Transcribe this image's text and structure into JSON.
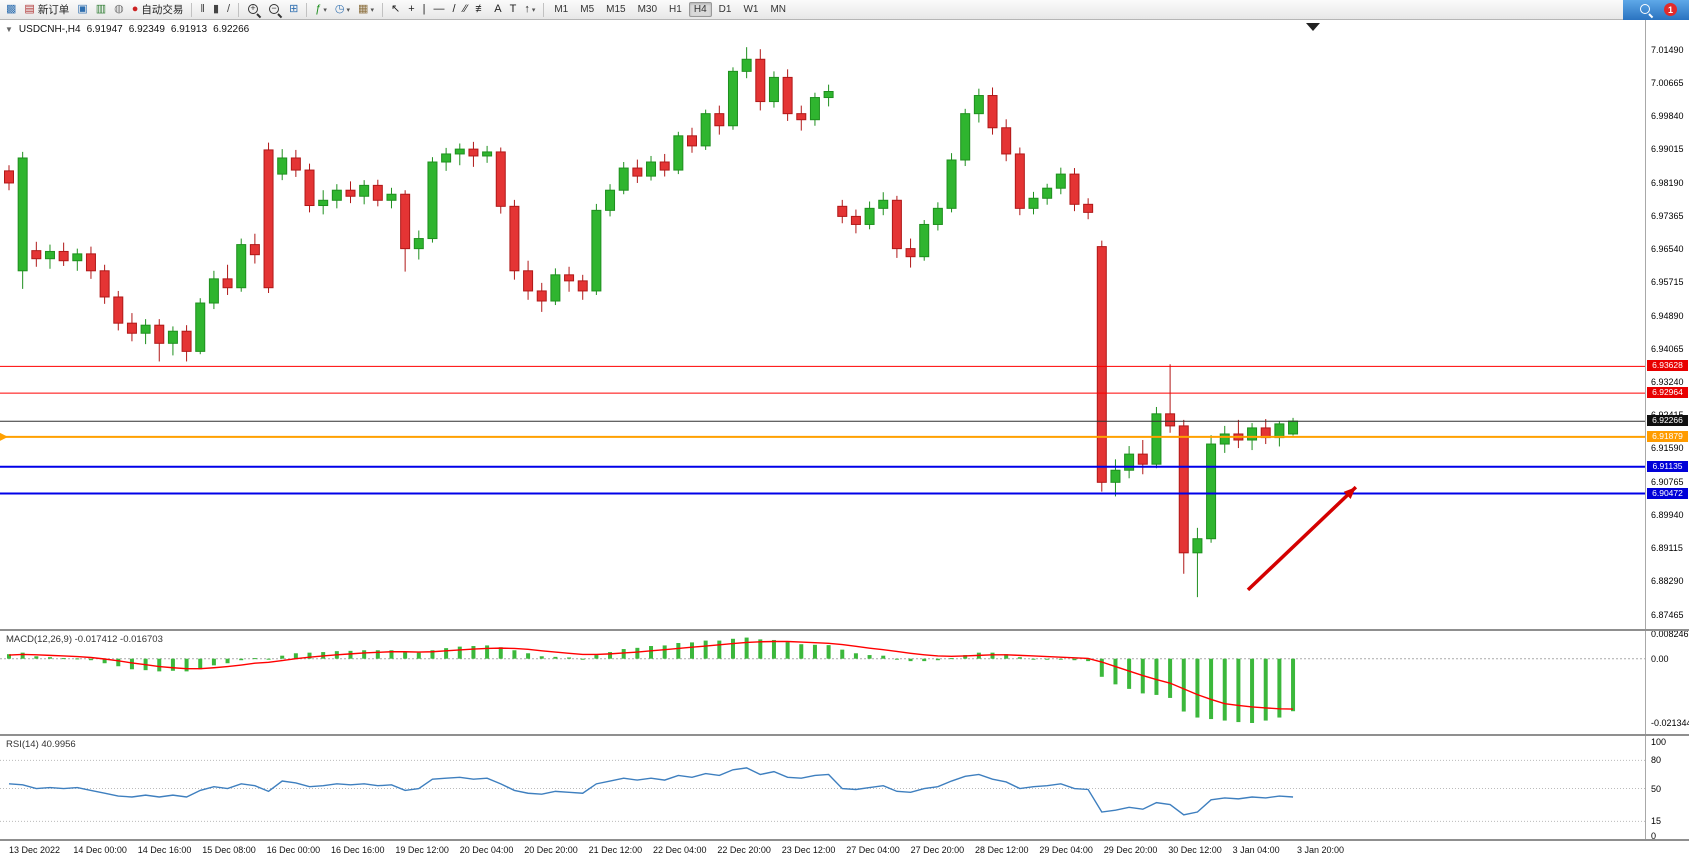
{
  "toolbar": {
    "buttons": [
      {
        "name": "new-chart",
        "glyph": "▩",
        "tint": "#2F6FB0"
      },
      {
        "name": "new-order",
        "label": "新订单",
        "glyph": "▤",
        "tint": "#B03030"
      },
      {
        "name": "profiles",
        "glyph": "▣",
        "tint": "#2F6FB0"
      },
      {
        "name": "market-watch",
        "glyph": "▥",
        "tint": "#2E7D32"
      },
      {
        "name": "navigator",
        "glyph": "◍",
        "tint": "#777777"
      },
      {
        "name": "autotrading",
        "label": "自动交易",
        "glyph": "●",
        "tint": "#CC2222"
      },
      {
        "sep": true
      },
      {
        "name": "bar-chart",
        "glyph": "‖",
        "tint": "#444444"
      },
      {
        "name": "candlestick-chart",
        "glyph": "▮",
        "tint": "#444444"
      },
      {
        "name": "line-chart",
        "glyph": "/",
        "tint": "#444444"
      },
      {
        "sep": true
      },
      {
        "name": "zoom-in",
        "css": "mag",
        "glyph": "+",
        "tint": "#333333"
      },
      {
        "name": "zoom-out",
        "css": "mag",
        "glyph": "−",
        "tint": "#333333"
      },
      {
        "name": "tile-windows",
        "glyph": "⊞",
        "tint": "#2F6FB0"
      },
      {
        "sep": true
      },
      {
        "name": "indicators",
        "glyph": "ƒ",
        "tint": "#1E8F1E",
        "dropdown": true
      },
      {
        "name": "periods",
        "glyph": "◷",
        "tint": "#2F6FB0",
        "dropdown": true
      },
      {
        "name": "templates",
        "glyph": "▦",
        "tint": "#8A6D3B",
        "dropdown": true
      },
      {
        "sep": true
      },
      {
        "name": "cursor",
        "glyph": "↖",
        "tint": "#222222"
      },
      {
        "name": "crosshair",
        "glyph": "+",
        "tint": "#222222"
      },
      {
        "name": "vertical-line",
        "glyph": "|",
        "tint": "#222222"
      },
      {
        "name": "horizontal-line",
        "glyph": "—",
        "tint": "#222222"
      },
      {
        "name": "trendline",
        "glyph": "/",
        "tint": "#222222"
      },
      {
        "name": "equidistant-channel",
        "glyph": "⁄⁄",
        "tint": "#222222"
      },
      {
        "name": "fibonacci",
        "glyph": "≢",
        "tint": "#222222"
      },
      {
        "name": "text",
        "glyph": "A",
        "tint": "#222222"
      },
      {
        "name": "text-label",
        "glyph": "T",
        "tint": "#222222"
      },
      {
        "name": "arrows",
        "glyph": "↑",
        "tint": "#222222",
        "dropdown": true
      },
      {
        "sep": true
      }
    ],
    "timeframes": [
      "M1",
      "M5",
      "M15",
      "M30",
      "H1",
      "H4",
      "D1",
      "W1",
      "MN"
    ],
    "active_timeframe": "H4",
    "notification_count": "1"
  },
  "chart": {
    "symbol_period": "USDCNH-,H4",
    "open": "6.91947",
    "high": "6.92349",
    "low": "6.91913",
    "close": "6.92266"
  },
  "colors": {
    "candle_up_fill": "#2FB52F",
    "candle_up_stroke": "#1E8F1E",
    "candle_down_fill": "#E43434",
    "candle_down_stroke": "#B01818",
    "macd_histogram": "#3CB83C",
    "macd_signal": "#FF0000",
    "rsi_line": "#3E7FBF"
  },
  "chart_data": {
    "type": "candlestick",
    "symbol": "USDCNH-",
    "timeframe": "H4",
    "price_axis": [
      "7.01490",
      "7.00665",
      "6.99840",
      "6.99015",
      "6.98190",
      "6.97365",
      "6.96540",
      "6.95715",
      "6.94890",
      "6.94065",
      "6.93240",
      "6.92415",
      "6.91590",
      "6.90765",
      "6.89940",
      "6.89115",
      "6.88290",
      "6.87465"
    ],
    "candles": [
      [
        6.9848,
        6.9862,
        6.98,
        6.9818
      ],
      [
        6.96,
        6.9895,
        6.9555,
        6.988
      ],
      [
        6.965,
        6.9672,
        6.961,
        6.963
      ],
      [
        6.963,
        6.9665,
        6.9605,
        6.9648
      ],
      [
        6.9648,
        6.967,
        6.9612,
        6.9625
      ],
      [
        6.9625,
        6.9655,
        6.96,
        6.9642
      ],
      [
        6.9642,
        6.966,
        6.958,
        6.96
      ],
      [
        6.96,
        6.9615,
        6.9518,
        6.9535
      ],
      [
        6.9535,
        6.955,
        6.9452,
        6.947
      ],
      [
        6.947,
        6.9495,
        6.9425,
        6.9445
      ],
      [
        6.9445,
        6.948,
        6.9418,
        6.9465
      ],
      [
        6.9465,
        6.948,
        6.9375,
        6.942
      ],
      [
        6.942,
        6.9462,
        6.939,
        6.945
      ],
      [
        6.945,
        6.9465,
        6.9375,
        6.94
      ],
      [
        6.94,
        6.9532,
        6.9393,
        6.952
      ],
      [
        6.952,
        6.96,
        6.9505,
        6.958
      ],
      [
        6.958,
        6.9615,
        6.954,
        6.9558
      ],
      [
        6.9558,
        6.968,
        6.9548,
        6.9665
      ],
      [
        6.9665,
        6.9692,
        6.9618,
        6.964
      ],
      [
        6.99,
        6.9918,
        6.9545,
        6.9558
      ],
      [
        6.984,
        6.9902,
        6.9825,
        6.988
      ],
      [
        6.988,
        6.99,
        6.9833,
        6.985
      ],
      [
        6.985,
        6.9866,
        6.9745,
        6.9762
      ],
      [
        6.9762,
        6.98,
        6.974,
        6.9775
      ],
      [
        6.9775,
        6.9815,
        6.9755,
        6.98
      ],
      [
        6.98,
        6.9822,
        6.9768,
        6.9785
      ],
      [
        6.9785,
        6.9825,
        6.9765,
        6.9812
      ],
      [
        6.9812,
        6.9826,
        6.976,
        6.9775
      ],
      [
        6.9775,
        6.9806,
        6.9755,
        6.979
      ],
      [
        6.979,
        6.98,
        6.9598,
        6.9655
      ],
      [
        6.9655,
        6.97,
        6.9628,
        6.968
      ],
      [
        6.968,
        6.9882,
        6.967,
        6.987
      ],
      [
        6.987,
        6.9905,
        6.9848,
        6.989
      ],
      [
        6.989,
        6.9916,
        6.9862,
        6.9902
      ],
      [
        6.9902,
        6.992,
        6.9858,
        6.9885
      ],
      [
        6.9885,
        6.991,
        6.9868,
        6.9895
      ],
      [
        6.9895,
        6.9906,
        6.9742,
        6.976
      ],
      [
        6.976,
        6.9776,
        6.9578,
        6.96
      ],
      [
        6.96,
        6.9625,
        6.9528,
        6.955
      ],
      [
        6.955,
        6.957,
        6.9498,
        6.9525
      ],
      [
        6.9525,
        6.9606,
        6.9515,
        6.959
      ],
      [
        6.959,
        6.961,
        6.9548,
        6.9575
      ],
      [
        6.9575,
        6.959,
        6.9528,
        6.955
      ],
      [
        6.955,
        6.9766,
        6.954,
        6.975
      ],
      [
        6.975,
        6.9815,
        6.9735,
        6.98
      ],
      [
        6.98,
        6.987,
        6.979,
        6.9855
      ],
      [
        6.9855,
        6.9876,
        6.9818,
        6.9835
      ],
      [
        6.9835,
        6.9885,
        6.9824,
        6.987
      ],
      [
        6.987,
        6.989,
        6.9834,
        6.985
      ],
      [
        6.985,
        6.9945,
        6.984,
        6.9935
      ],
      [
        6.9935,
        6.9955,
        6.9893,
        6.991
      ],
      [
        6.991,
        7.0,
        6.99,
        6.999
      ],
      [
        6.999,
        7.001,
        6.9938,
        6.996
      ],
      [
        6.996,
        7.0105,
        6.995,
        7.0095
      ],
      [
        7.0095,
        7.0155,
        7.0078,
        7.0125
      ],
      [
        7.0125,
        7.015,
        6.9998,
        7.002
      ],
      [
        7.002,
        7.0095,
        7.0005,
        7.008
      ],
      [
        7.008,
        7.01,
        6.9972,
        6.999
      ],
      [
        6.999,
        7.001,
        6.9948,
        6.9975
      ],
      [
        6.9975,
        7.0042,
        6.996,
        7.003
      ],
      [
        7.003,
        7.0062,
        7.0008,
        7.0045
      ],
      [
        6.976,
        6.9776,
        6.9718,
        6.9735
      ],
      [
        6.9735,
        6.9752,
        6.9693,
        6.9715
      ],
      [
        6.9715,
        6.9772,
        6.9703,
        6.9755
      ],
      [
        6.9755,
        6.9795,
        6.9738,
        6.9775
      ],
      [
        6.9775,
        6.9786,
        6.9632,
        6.9655
      ],
      [
        6.9655,
        6.968,
        6.9608,
        6.9635
      ],
      [
        6.9635,
        6.9726,
        6.9625,
        6.9715
      ],
      [
        6.9715,
        6.977,
        6.97,
        6.9755
      ],
      [
        6.9755,
        6.9892,
        6.9745,
        6.9875
      ],
      [
        6.9875,
        7.0002,
        6.986,
        6.999
      ],
      [
        6.999,
        7.0052,
        6.9968,
        7.0035
      ],
      [
        7.0035,
        7.0055,
        6.9938,
        6.9955
      ],
      [
        6.9955,
        6.9976,
        6.9872,
        6.989
      ],
      [
        6.989,
        6.9906,
        6.9738,
        6.9755
      ],
      [
        6.9755,
        6.9796,
        6.974,
        6.978
      ],
      [
        6.978,
        6.9816,
        6.9764,
        6.9805
      ],
      [
        6.9805,
        6.9856,
        6.979,
        6.984
      ],
      [
        6.984,
        6.9855,
        6.9748,
        6.9765
      ],
      [
        6.9765,
        6.978,
        6.9728,
        6.9745
      ],
      [
        6.966,
        6.9675,
        6.9052,
        6.9075
      ],
      [
        6.9075,
        6.9132,
        6.904,
        6.9105
      ],
      [
        6.9105,
        6.9165,
        6.9085,
        6.9145
      ],
      [
        6.9145,
        6.918,
        6.9095,
        6.912
      ],
      [
        6.912,
        6.9262,
        6.911,
        6.9245
      ],
      [
        6.9245,
        6.9368,
        6.9198,
        6.9215
      ],
      [
        6.9215,
        6.923,
        6.8848,
        6.89
      ],
      [
        6.89,
        6.8962,
        6.879,
        6.8935
      ],
      [
        6.8935,
        6.9192,
        6.8925,
        6.917
      ],
      [
        6.917,
        6.9215,
        6.9148,
        6.9195
      ],
      [
        6.9195,
        6.923,
        6.916,
        6.918
      ],
      [
        6.918,
        6.9222,
        6.9155,
        6.921
      ],
      [
        6.921,
        6.9232,
        6.917,
        6.9186
      ],
      [
        6.9186,
        6.9226,
        6.9164,
        6.922
      ],
      [
        6.9195,
        6.9235,
        6.9191,
        6.9227
      ]
    ],
    "hlines": [
      {
        "price": 6.93628,
        "label": "6.93628",
        "color": "#FF0000",
        "label_bg": "#E80000",
        "width": 1
      },
      {
        "price": 6.92964,
        "label": "6.92964",
        "color": "#FF0000",
        "label_bg": "#E80000",
        "width": 1
      },
      {
        "price": 6.92266,
        "label": "6.92266",
        "color": "#303030",
        "label_bg": "#101010",
        "width": 1
      },
      {
        "price": 6.91879,
        "label": "6.91879",
        "color": "#FFA000",
        "label_bg": "#FF9C00",
        "width": 2,
        "left_marker": true
      },
      {
        "price": 6.91135,
        "label": "6.91135",
        "color": "#0000E8",
        "label_bg": "#0000D8",
        "width": 2
      },
      {
        "price": 6.90472,
        "label": "6.90472",
        "color": "#0000E8",
        "label_bg": "#0000D8",
        "width": 2
      }
    ],
    "arrow": {
      "from_index": 90.7,
      "from_price": 6.8808,
      "to_index": 98.6,
      "to_price": 6.9063,
      "color": "#D40000"
    },
    "macd": {
      "label": "MACD(12,26,9) -0.017412 -0.016703",
      "axis": [
        "0.008246",
        "0.00",
        "-0.021344"
      ],
      "histogram": [
        0.0015,
        0.002,
        0.0008,
        0.0005,
        0.0002,
        0.0001,
        -0.0005,
        -0.0015,
        -0.0025,
        -0.0035,
        -0.0038,
        -0.0042,
        -0.004,
        -0.0042,
        -0.0035,
        -0.0022,
        -0.0015,
        -0.0005,
        0.0002,
        -0.0002,
        0.001,
        0.0018,
        0.002,
        0.0022,
        0.0025,
        0.0026,
        0.0028,
        0.0028,
        0.0028,
        0.0022,
        0.002,
        0.0028,
        0.0035,
        0.004,
        0.0042,
        0.0044,
        0.0038,
        0.0028,
        0.0018,
        0.0008,
        0.0006,
        0.0004,
        0.0,
        0.0012,
        0.0022,
        0.0032,
        0.0036,
        0.0042,
        0.0044,
        0.0052,
        0.0054,
        0.006,
        0.006,
        0.0066,
        0.007,
        0.0064,
        0.0062,
        0.0055,
        0.0048,
        0.0046,
        0.0045,
        0.003,
        0.0018,
        0.0012,
        0.001,
        0.0,
        -0.0008,
        -0.0008,
        -0.0005,
        0.0002,
        0.0012,
        0.002,
        0.002,
        0.0015,
        0.0005,
        0.0,
        -0.0002,
        -0.0002,
        -0.0005,
        -0.0008,
        -0.006,
        -0.0085,
        -0.01,
        -0.0115,
        -0.012,
        -0.013,
        -0.0175,
        -0.0195,
        -0.02,
        -0.0205,
        -0.021,
        -0.0213,
        -0.0205,
        -0.0195,
        -0.0174
      ],
      "signal": [
        0.0012,
        0.0014,
        0.0013,
        0.0011,
        0.0009,
        0.0007,
        0.0004,
        -0.0001,
        -0.0007,
        -0.0014,
        -0.002,
        -0.0026,
        -0.003,
        -0.0033,
        -0.0033,
        -0.003,
        -0.0026,
        -0.0021,
        -0.0015,
        -0.0012,
        -0.0006,
        0.0,
        0.0005,
        0.0009,
        0.0013,
        0.0016,
        0.0019,
        0.0021,
        0.0023,
        0.0023,
        0.0022,
        0.0023,
        0.0026,
        0.0029,
        0.0032,
        0.0034,
        0.0035,
        0.0034,
        0.0031,
        0.0026,
        0.0022,
        0.0018,
        0.0014,
        0.0014,
        0.0016,
        0.0019,
        0.0022,
        0.0026,
        0.003,
        0.0034,
        0.0038,
        0.0042,
        0.0046,
        0.005,
        0.0054,
        0.0056,
        0.0057,
        0.0057,
        0.0055,
        0.0053,
        0.0051,
        0.0047,
        0.0041,
        0.0035,
        0.003,
        0.0024,
        0.0018,
        0.0013,
        0.0009,
        0.0008,
        0.0009,
        0.0011,
        0.0013,
        0.0013,
        0.0011,
        0.0009,
        0.0007,
        0.0005,
        0.0003,
        0.0001,
        -0.0011,
        -0.0026,
        -0.0041,
        -0.0056,
        -0.0069,
        -0.0081,
        -0.01,
        -0.0119,
        -0.0135,
        -0.0149,
        -0.0155,
        -0.016,
        -0.0163,
        -0.0166,
        -0.0167
      ]
    },
    "rsi": {
      "label": "RSI(14) 40.9956",
      "axis": [
        "100",
        "80",
        "50",
        "15",
        "0"
      ],
      "levels": [
        80,
        50,
        15
      ],
      "values": [
        55,
        54,
        50,
        51,
        50,
        51,
        48,
        45,
        42,
        41,
        43,
        41,
        43,
        41,
        48,
        52,
        50,
        55,
        53,
        47,
        58,
        56,
        52,
        53,
        55,
        54,
        55,
        53,
        54,
        48,
        50,
        60,
        61,
        62,
        60,
        61,
        55,
        48,
        45,
        44,
        47,
        46,
        45,
        55,
        58,
        61,
        59,
        61,
        59,
        64,
        62,
        66,
        64,
        70,
        72,
        65,
        68,
        62,
        61,
        64,
        65,
        50,
        49,
        51,
        53,
        47,
        46,
        50,
        52,
        58,
        63,
        65,
        60,
        57,
        50,
        52,
        53,
        55,
        50,
        49,
        25,
        27,
        30,
        28,
        35,
        33,
        22,
        25,
        38,
        40,
        39,
        41,
        40,
        42,
        41
      ]
    },
    "time_axis": [
      "13 Dec 2022",
      "14 Dec 00:00",
      "14 Dec 16:00",
      "15 Dec 08:00",
      "16 Dec 00:00",
      "16 Dec 16:00",
      "19 Dec 12:00",
      "20 Dec 04:00",
      "20 Dec 20:00",
      "21 Dec 12:00",
      "22 Dec 04:00",
      "22 Dec 20:00",
      "23 Dec 12:00",
      "27 Dec 04:00",
      "27 Dec 20:00",
      "28 Dec 12:00",
      "29 Dec 04:00",
      "29 Dec 20:00",
      "30 Dec 12:00",
      "3 Jan 04:00",
      "3 Jan 20:00"
    ]
  }
}
